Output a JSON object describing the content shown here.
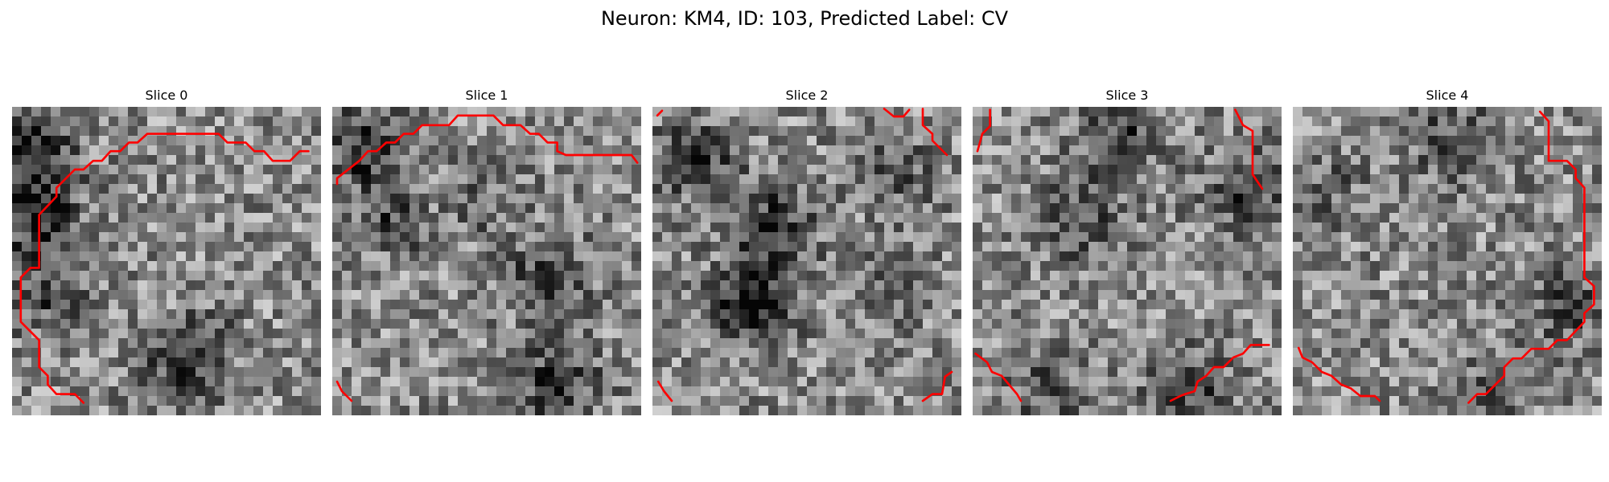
{
  "figure": {
    "title": "Neuron: KM4, ID: 103, Predicted Label: CV",
    "colormap": "grayscale",
    "contour_color": "#ff0000",
    "grid_size": 32,
    "panels": [
      {
        "title": "Slice 0",
        "contour_paths": [
          "7.4,30.7 6.5,29.8 4.6,29.8 3.7,28.8 3.7,27.9 2.8,27.0 2.8,24.2 0.9,22.3 0.9,17.7 1.9,16.7 2.8,16.7 2.8,11.2 4.6,9.3 4.6,8.4 6.5,6.5 7.4,6.5 8.4,5.6 9.3,5.6 10.2,4.6 11.2,4.6 12.1,3.7 13.0,3.7 14.0,2.8 21.4,2.8 22.3,3.7 24.2,3.7 25.1,4.6 26.1,4.6 27.0,5.6 28.8,5.6 29.8,4.6 30.7,4.6"
        ]
      },
      {
        "title": "Slice 1",
        "contour_paths": [
          "0.5,8.0 0.5,7.4 2.8,5.6 3.7,4.6 4.6,4.6 5.6,3.7 6.5,3.7 7.4,2.8 8.4,2.8 9.3,1.9 12.1,1.9 13.0,0.9 16.7,0.9 17.7,1.9 19.5,1.9 20.5,2.8 21.4,2.8 22.3,3.7 23.3,3.7 23.3,4.6 24.2,5.0 31.0,5.0 31.6,5.8",
          "0.5,28.5 1.0,29.5 2.0,30.5"
        ]
      },
      {
        "title": "Slice 2",
        "contour_paths": [
          "0.5,0.9 1.0,0.4",
          "24.0,0.2 25.0,1.0 26.0,1.0 26.6,0.3",
          "28.0,0.2 28.0,1.9 29.0,2.8 29.0,3.5 30.5,5.0",
          "0.6,28.5 1.2,29.5 2.0,30.5",
          "28.0,30.5 29.0,29.8 30.0,29.8 30.3,28.0 31.0,27.5"
        ]
      },
      {
        "title": "Slice 3",
        "contour_paths": [
          "1.8,0.3 1.8,2.0 1.0,2.8 0.5,4.6",
          "27.2,0.3 28.0,1.9 29.0,2.5 29.0,7.0 30.0,8.5",
          "0.3,25.6 1.5,26.5 2.0,27.5 3.0,27.9 4.6,29.8 5.0,30.5",
          "20.5,30.5 21.5,30.0 22.0,29.8 23.0,29.5 23.3,28.5 24.2,27.9 25.0,27.0 26.0,27.0 27.0,26.0 28.0,25.6 28.8,24.7 30.7,24.7"
        ]
      },
      {
        "title": "Slice 4",
        "contour_paths": [
          "25.6,0.5 26.5,1.5 26.5,5.6 28.4,5.6 29.3,6.5 29.3,7.4 30.2,8.4 30.2,17.7 31.2,18.6 31.2,20.5 30.2,21.4 30.2,22.3 28.4,24.2 27.4,24.2 26.5,25.1 24.7,25.1 23.7,26.1 22.8,26.1 21.9,27.0 21.9,27.9 20.0,29.8 19.1,29.8 18.2,30.7",
          "0.6,25.0 1.0,26.0 2.0,26.5 3.0,27.5 4.0,27.9 5.0,28.8 6.0,29.2 7.0,30.0 8.5,30.0 9.0,30.5"
        ]
      }
    ]
  }
}
